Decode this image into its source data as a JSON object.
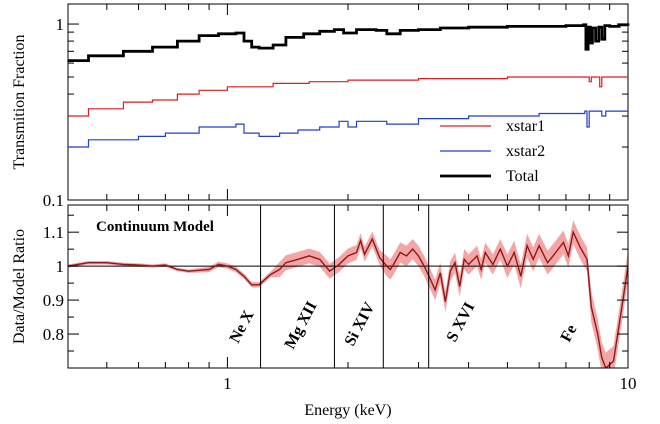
{
  "chart_data": [
    {
      "panel": "top",
      "type": "line",
      "xlabel": "",
      "ylabel": "Transmition Fraction",
      "xscale": "log",
      "yscale": "log",
      "xlim": [
        0.4,
        10
      ],
      "ylim": [
        0.1,
        1.3
      ],
      "y_tick_labels": [
        "0.1",
        "1"
      ],
      "grid": false,
      "legend_position": "center-right",
      "series": [
        {
          "name": "xstar1",
          "color": "#e41a1c",
          "points": [
            [
              0.4,
              0.3
            ],
            [
              0.45,
              0.3
            ],
            [
              0.45,
              0.33
            ],
            [
              0.55,
              0.33
            ],
            [
              0.55,
              0.36
            ],
            [
              0.65,
              0.37
            ],
            [
              0.75,
              0.4
            ],
            [
              0.85,
              0.42
            ],
            [
              1.0,
              0.44
            ],
            [
              1.3,
              0.46
            ],
            [
              1.6,
              0.47
            ],
            [
              2.0,
              0.48
            ],
            [
              3.0,
              0.49
            ],
            [
              5.0,
              0.5
            ],
            [
              7.5,
              0.5
            ],
            [
              7.9,
              0.5
            ],
            [
              8.0,
              0.47
            ],
            [
              8.1,
              0.5
            ],
            [
              8.4,
              0.5
            ],
            [
              8.5,
              0.44
            ],
            [
              8.6,
              0.5
            ],
            [
              9.0,
              0.5
            ],
            [
              10.0,
              0.5
            ]
          ]
        },
        {
          "name": "xstar2",
          "color": "#1f3fd0",
          "points": [
            [
              0.4,
              0.2
            ],
            [
              0.45,
              0.2
            ],
            [
              0.45,
              0.22
            ],
            [
              0.55,
              0.22
            ],
            [
              0.6,
              0.23
            ],
            [
              0.7,
              0.24
            ],
            [
              0.85,
              0.26
            ],
            [
              1.0,
              0.26
            ],
            [
              1.05,
              0.27
            ],
            [
              1.1,
              0.24
            ],
            [
              1.2,
              0.23
            ],
            [
              1.35,
              0.24
            ],
            [
              1.5,
              0.25
            ],
            [
              1.7,
              0.26
            ],
            [
              1.9,
              0.28
            ],
            [
              2.0,
              0.26
            ],
            [
              2.1,
              0.28
            ],
            [
              2.3,
              0.28
            ],
            [
              2.5,
              0.27
            ],
            [
              3.0,
              0.29
            ],
            [
              4.0,
              0.3
            ],
            [
              5.0,
              0.3
            ],
            [
              6.0,
              0.31
            ],
            [
              7.0,
              0.31
            ],
            [
              7.8,
              0.32
            ],
            [
              7.9,
              0.26
            ],
            [
              8.0,
              0.32
            ],
            [
              8.6,
              0.3
            ],
            [
              8.8,
              0.32
            ],
            [
              10.0,
              0.32
            ]
          ]
        },
        {
          "name": "Total",
          "color": "#000000",
          "points": [
            [
              0.4,
              0.62
            ],
            [
              0.45,
              0.62
            ],
            [
              0.45,
              0.66
            ],
            [
              0.55,
              0.7
            ],
            [
              0.65,
              0.74
            ],
            [
              0.75,
              0.8
            ],
            [
              0.85,
              0.86
            ],
            [
              0.95,
              0.88
            ],
            [
              1.05,
              0.89
            ],
            [
              1.1,
              0.8
            ],
            [
              1.15,
              0.74
            ],
            [
              1.2,
              0.73
            ],
            [
              1.3,
              0.76
            ],
            [
              1.4,
              0.84
            ],
            [
              1.55,
              0.88
            ],
            [
              1.7,
              0.91
            ],
            [
              1.85,
              0.93
            ],
            [
              1.95,
              0.89
            ],
            [
              2.1,
              0.93
            ],
            [
              2.35,
              0.92
            ],
            [
              2.5,
              0.88
            ],
            [
              2.7,
              0.92
            ],
            [
              3.0,
              0.93
            ],
            [
              3.4,
              0.95
            ],
            [
              4.0,
              0.96
            ],
            [
              5.0,
              0.97
            ],
            [
              6.0,
              0.97
            ],
            [
              7.0,
              0.98
            ],
            [
              7.5,
              0.98
            ],
            [
              7.75,
              0.99
            ],
            [
              7.85,
              0.72
            ],
            [
              7.95,
              0.96
            ],
            [
              8.05,
              0.78
            ],
            [
              8.15,
              0.95
            ],
            [
              8.3,
              0.8
            ],
            [
              8.45,
              0.96
            ],
            [
              8.6,
              0.82
            ],
            [
              8.75,
              0.98
            ],
            [
              9.0,
              0.97
            ],
            [
              9.5,
              0.99
            ],
            [
              10.0,
              0.98
            ]
          ]
        }
      ]
    },
    {
      "panel": "bottom",
      "type": "line",
      "title": "Continuum Model",
      "xlabel": "Energy (keV)",
      "ylabel": "Data/Model Ratio",
      "xscale": "log",
      "xlim": [
        0.4,
        10
      ],
      "ylim": [
        0.7,
        1.18
      ],
      "x_tick_labels": [
        "1",
        "10"
      ],
      "y_tick_labels": [
        "0.8",
        "0.9",
        "1",
        "1.1"
      ],
      "reference_line": 1.0,
      "series": [
        {
          "name": "",
          "color": "#8b1a1a",
          "band_color": "#f4a5a5",
          "band_halfwidth": [
            0.005,
            0.008,
            0.022,
            0.03,
            0.035,
            0.045
          ],
          "points": [
            [
              0.4,
              1.0
            ],
            [
              0.45,
              1.01
            ],
            [
              0.5,
              1.01
            ],
            [
              0.55,
              1.005
            ],
            [
              0.6,
              1.003
            ],
            [
              0.65,
              1.0
            ],
            [
              0.7,
              1.003
            ],
            [
              0.75,
              0.99
            ],
            [
              0.8,
              0.985
            ],
            [
              0.9,
              0.99
            ],
            [
              0.95,
              1.005
            ],
            [
              1.0,
              1.0
            ],
            [
              1.05,
              0.99
            ],
            [
              1.1,
              0.97
            ],
            [
              1.15,
              0.945
            ],
            [
              1.2,
              0.945
            ],
            [
              1.28,
              0.975
            ],
            [
              1.35,
              0.99
            ],
            [
              1.4,
              1.01
            ],
            [
              1.5,
              1.02
            ],
            [
              1.6,
              1.03
            ],
            [
              1.7,
              1.02
            ],
            [
              1.8,
              0.985
            ],
            [
              1.9,
              1.005
            ],
            [
              2.0,
              1.03
            ],
            [
              2.1,
              1.04
            ],
            [
              2.15,
              1.075
            ],
            [
              2.2,
              1.035
            ],
            [
              2.3,
              1.08
            ],
            [
              2.4,
              1.025
            ],
            [
              2.5,
              1.0
            ],
            [
              2.55,
              0.99
            ],
            [
              2.6,
              1.005
            ],
            [
              2.7,
              1.04
            ],
            [
              2.8,
              1.03
            ],
            [
              2.9,
              1.05
            ],
            [
              3.0,
              1.03
            ],
            [
              3.1,
              1.0
            ],
            [
              3.2,
              0.965
            ],
            [
              3.3,
              0.93
            ],
            [
              3.4,
              0.98
            ],
            [
              3.5,
              0.895
            ],
            [
              3.6,
              0.985
            ],
            [
              3.7,
              1.01
            ],
            [
              3.8,
              0.94
            ],
            [
              3.9,
              1.02
            ],
            [
              4.0,
              1.005
            ],
            [
              4.2,
              1.03
            ],
            [
              4.3,
              0.99
            ],
            [
              4.4,
              1.04
            ],
            [
              4.6,
              1.005
            ],
            [
              4.8,
              1.05
            ],
            [
              5.0,
              1.0
            ],
            [
              5.2,
              1.04
            ],
            [
              5.4,
              0.97
            ],
            [
              5.6,
              1.06
            ],
            [
              5.8,
              1.02
            ],
            [
              6.0,
              1.06
            ],
            [
              6.3,
              1.01
            ],
            [
              6.6,
              1.04
            ],
            [
              6.9,
              1.07
            ],
            [
              7.1,
              1.03
            ],
            [
              7.3,
              1.1
            ],
            [
              7.6,
              1.055
            ],
            [
              7.9,
              1.02
            ],
            [
              8.1,
              0.88
            ],
            [
              8.4,
              0.8
            ],
            [
              8.6,
              0.73
            ],
            [
              8.8,
              0.7
            ],
            [
              9.2,
              0.72
            ],
            [
              9.6,
              0.86
            ],
            [
              10.0,
              1.0
            ]
          ]
        }
      ],
      "vertical_line_labels": [
        {
          "label": "Ne X",
          "energy": 1.21
        },
        {
          "label": "Mg XII",
          "energy": 1.85
        },
        {
          "label": "Si XIV",
          "energy": 2.45
        },
        {
          "label": "S XVI",
          "energy": 3.18
        },
        {
          "label": "Fe",
          "energy": 6.9
        }
      ],
      "vertical_lines_at": [
        1.21,
        1.85,
        2.45,
        3.18
      ]
    }
  ]
}
